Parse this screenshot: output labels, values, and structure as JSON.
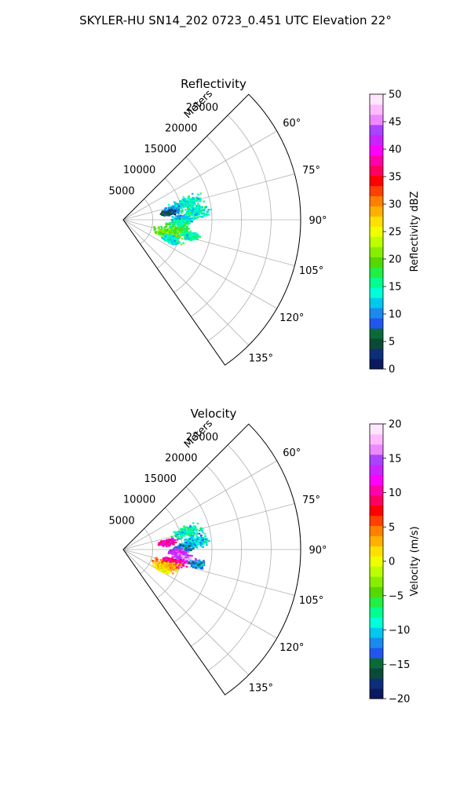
{
  "suptitle": "SKYLER-HU  SN14_202  0723_0.451 UTC Elevation 22°",
  "chart_data": [
    {
      "type": "polar-sector-radar",
      "title": "Reflectivity",
      "range_label": "Meters",
      "range_ticks": [
        "5000",
        "10000",
        "15000",
        "20000",
        "25000"
      ],
      "r_max": 30000,
      "theta_range_deg": [
        45,
        145
      ],
      "theta_ticks": [
        "60°",
        "75°",
        "90°",
        "105°",
        "120°",
        "135°"
      ],
      "theta_tick_values": [
        60,
        75,
        90,
        105,
        120,
        135
      ],
      "grid": true,
      "colorbar": {
        "label": "Reflectivity dBZ",
        "min": 0,
        "max": 50,
        "ticks": [
          "0",
          "5",
          "10",
          "15",
          "20",
          "25",
          "30",
          "35",
          "40",
          "45",
          "50"
        ],
        "tick_values": [
          0,
          5,
          10,
          15,
          20,
          25,
          30,
          35,
          40,
          45,
          50
        ],
        "colors": [
          "#0a1a5e",
          "#0d2f7a",
          "#0c4a38",
          "#0a6a3a",
          "#2255ee",
          "#1a8aee",
          "#00c8ee",
          "#00ffd8",
          "#00ff90",
          "#22ee44",
          "#55d800",
          "#88ee00",
          "#bbff00",
          "#eeff00",
          "#ffe000",
          "#ffb000",
          "#ff8000",
          "#ff4000",
          "#ff0000",
          "#ff0060",
          "#ff00aa",
          "#ff00ff",
          "#cc22ff",
          "#aa44ff",
          "#ee88ff",
          "#ffbbff",
          "#ffe6ff"
        ]
      },
      "echo_regions": [
        {
          "theta": 74,
          "r": 11000,
          "dtheta": 7,
          "dr": 3500,
          "value": 14
        },
        {
          "theta": 83,
          "r": 12000,
          "dtheta": 7,
          "dr": 3500,
          "value": 14
        },
        {
          "theta": 88,
          "r": 10000,
          "dtheta": 5,
          "dr": 2500,
          "value": 12
        },
        {
          "theta": 92,
          "r": 9500,
          "dtheta": 4,
          "dr": 2000,
          "value": 15
        },
        {
          "theta": 78,
          "r": 8000,
          "dtheta": 6,
          "dr": 2000,
          "value": 10
        },
        {
          "theta": 80,
          "r": 7500,
          "dtheta": 4,
          "dr": 1500,
          "value": 5
        },
        {
          "theta": 99,
          "r": 9000,
          "dtheta": 7,
          "dr": 3000,
          "value": 18
        },
        {
          "theta": 107,
          "r": 7800,
          "dtheta": 9,
          "dr": 3500,
          "value": 20
        },
        {
          "theta": 103,
          "r": 11500,
          "dtheta": 5,
          "dr": 2000,
          "value": 15
        },
        {
          "theta": 112,
          "r": 8500,
          "dtheta": 6,
          "dr": 2000,
          "value": 14
        }
      ]
    },
    {
      "type": "polar-sector-radar",
      "title": "Velocity",
      "range_label": "Meters",
      "range_ticks": [
        "5000",
        "10000",
        "15000",
        "20000",
        "25000"
      ],
      "r_max": 30000,
      "theta_range_deg": [
        45,
        145
      ],
      "theta_ticks": [
        "60°",
        "75°",
        "90°",
        "105°",
        "120°",
        "135°"
      ],
      "theta_tick_values": [
        60,
        75,
        90,
        105,
        120,
        135
      ],
      "grid": true,
      "colorbar": {
        "label": "Velocity (m/s)",
        "min": -20,
        "max": 20,
        "ticks": [
          "−20",
          "−15",
          "−10",
          "−5",
          "0",
          "5",
          "10",
          "15",
          "20"
        ],
        "tick_values": [
          -20,
          -15,
          -10,
          -5,
          0,
          5,
          10,
          15,
          20
        ],
        "colors": [
          "#0a1a5e",
          "#0d2f7a",
          "#0c4a38",
          "#0a6a3a",
          "#2255ee",
          "#1a8aee",
          "#00c8ee",
          "#00ffd8",
          "#00ff90",
          "#22ee44",
          "#55d800",
          "#88ee00",
          "#bbff00",
          "#eeff00",
          "#ffe000",
          "#ffb000",
          "#ff8000",
          "#ff4000",
          "#ff0000",
          "#ff0060",
          "#ff00aa",
          "#ff00ff",
          "#cc22ff",
          "#aa44ff",
          "#ee88ff",
          "#ffbbff",
          "#ffe6ff"
        ]
      },
      "echo_regions": [
        {
          "theta": 74,
          "r": 11000,
          "dtheta": 7,
          "dr": 3500,
          "value": -8
        },
        {
          "theta": 83,
          "r": 12000,
          "dtheta": 7,
          "dr": 3500,
          "value": -10
        },
        {
          "theta": 88,
          "r": 10000,
          "dtheta": 5,
          "dr": 2500,
          "value": -12
        },
        {
          "theta": 80,
          "r": 7500,
          "dtheta": 5,
          "dr": 2000,
          "value": 10
        },
        {
          "theta": 92,
          "r": 9000,
          "dtheta": 4,
          "dr": 2000,
          "value": 14
        },
        {
          "theta": 98,
          "r": 10000,
          "dtheta": 6,
          "dr": 3000,
          "value": 15
        },
        {
          "theta": 104,
          "r": 8500,
          "dtheta": 7,
          "dr": 3000,
          "value": 10
        },
        {
          "theta": 110,
          "r": 7500,
          "dtheta": 8,
          "dr": 3000,
          "value": 3
        },
        {
          "theta": 101,
          "r": 12500,
          "dtheta": 4,
          "dr": 1500,
          "value": -12
        },
        {
          "theta": 116,
          "r": 7000,
          "dtheta": 5,
          "dr": 2000,
          "value": 1
        }
      ]
    }
  ]
}
